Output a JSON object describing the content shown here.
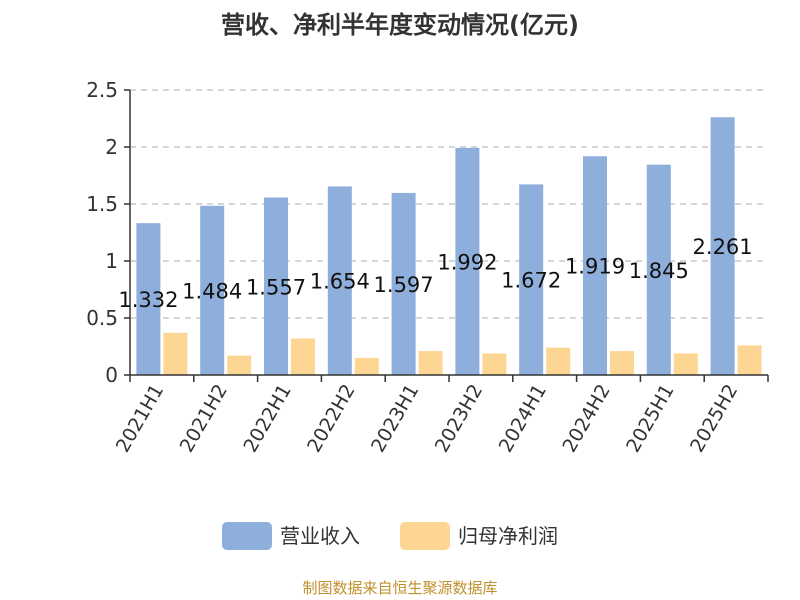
{
  "chart_data": {
    "type": "bar",
    "title": "营收、净利半年度变动情况(亿元)",
    "categories": [
      "2021H1",
      "2021H2",
      "2022H1",
      "2022H2",
      "2023H1",
      "2023H2",
      "2024H1",
      "2024H2",
      "2025H1",
      "2025H2"
    ],
    "series": [
      {
        "name": "营业收入",
        "color": "#8eaedb",
        "values": [
          1.332,
          1.484,
          1.557,
          1.654,
          1.597,
          1.992,
          1.672,
          1.919,
          1.845,
          2.261
        ],
        "data_labels": [
          "1.332",
          "1.484",
          "1.557",
          "1.654",
          "1.597",
          "1.992",
          "1.672",
          "1.919",
          "1.845",
          "2.261"
        ]
      },
      {
        "name": "归母净利润",
        "color": "#fed694",
        "values": [
          0.37,
          0.17,
          0.32,
          0.15,
          0.21,
          0.19,
          0.24,
          0.21,
          0.19,
          0.26
        ]
      }
    ],
    "yticks": [
      "0",
      "0.5",
      "1",
      "1.5",
      "2",
      "2.5"
    ],
    "ylim": [
      0,
      2.5
    ],
    "grid": true,
    "legend_position": "bottom"
  },
  "source_text": "制图数据来自恒生聚源数据库"
}
